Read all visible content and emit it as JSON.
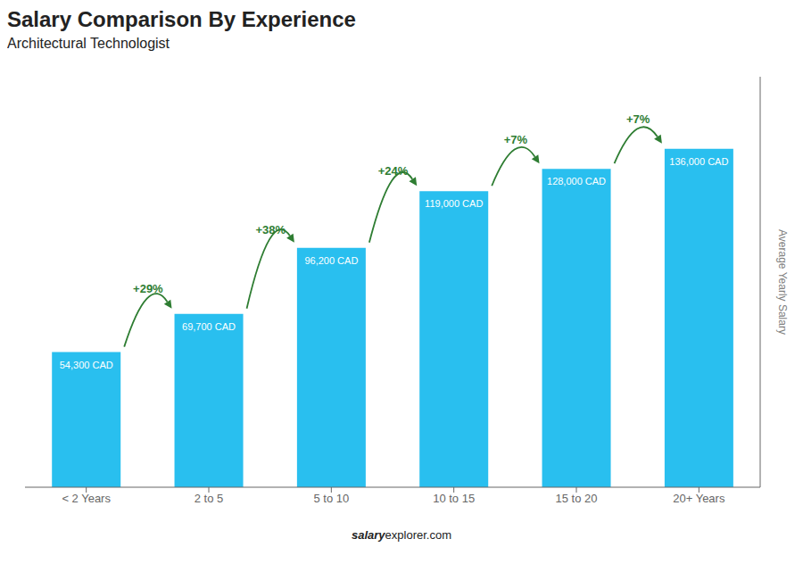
{
  "chart_data": {
    "type": "bar",
    "title": "Salary Comparison By Experience",
    "subtitle": "Architectural Technologist",
    "categories": [
      "< 2 Years",
      "2 to 5",
      "5 to 10",
      "10 to 15",
      "15 to 20",
      "20+ Years"
    ],
    "values": [
      54300,
      69700,
      96200,
      119000,
      128000,
      136000
    ],
    "value_labels": [
      "54,300 CAD",
      "69,700 CAD",
      "96,200 CAD",
      "119,000 CAD",
      "128,000 CAD",
      "136,000 CAD"
    ],
    "data_labels": true,
    "color": "#29BFEF",
    "ylim": [
      0,
      165000
    ],
    "ylabel": "Average Yearly Salary",
    "tick_labels": "x",
    "grid": false,
    "annotations": [
      "+29%",
      "+38%",
      "+24%",
      "+7%",
      "+7%"
    ],
    "footer": [
      "salary",
      "explorer.com"
    ]
  }
}
